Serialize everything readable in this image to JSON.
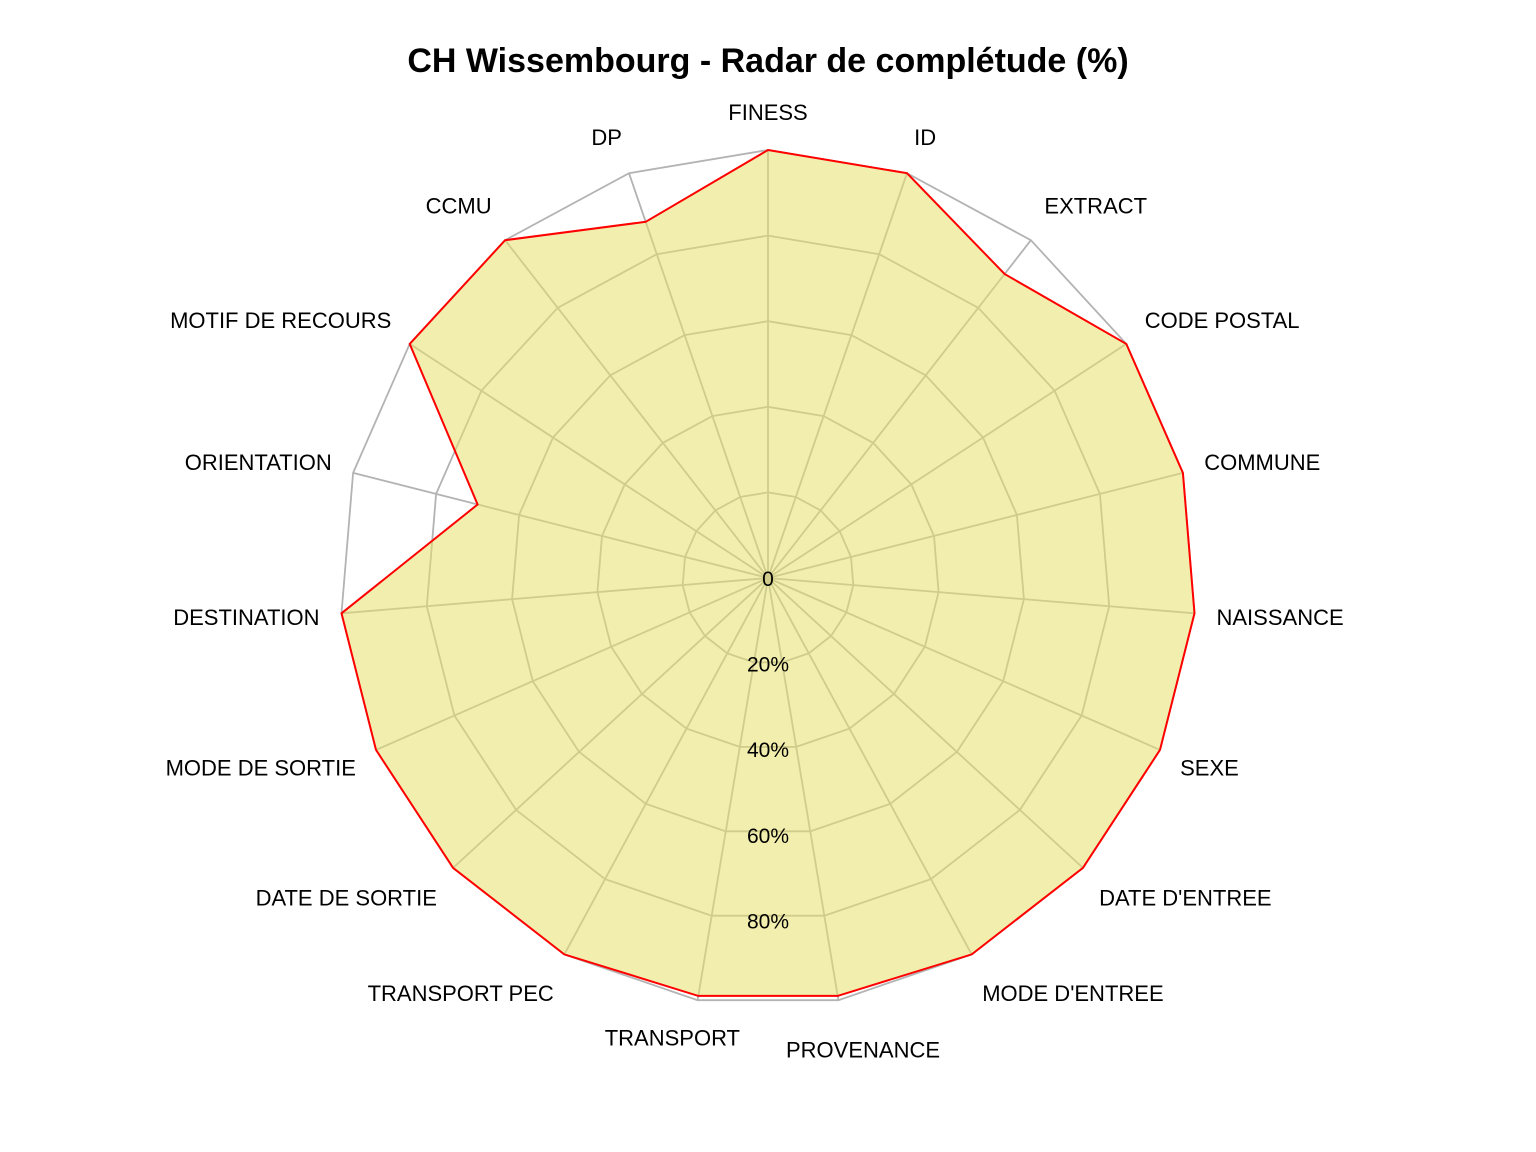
{
  "chart_data": {
    "type": "radar",
    "title": "CH Wissembourg - Radar de complétude (%)",
    "categories": [
      "FINESS",
      "ID",
      "EXTRACT",
      "CODE POSTAL",
      "COMMUNE",
      "NAISSANCE",
      "SEXE",
      "DATE D'ENTREE",
      "MODE D'ENTREE",
      "PROVENANCE",
      "TRANSPORT",
      "TRANSPORT PEC",
      "DATE DE SORTIE",
      "MODE DE SORTIE",
      "DESTINATION",
      "ORIENTATION",
      "MOTIF DE RECOURS",
      "CCMU",
      "DP"
    ],
    "series": [
      {
        "values": [
          100,
          100,
          90,
          100,
          100,
          100,
          100,
          100,
          100,
          99,
          99,
          100,
          100,
          100,
          100,
          70,
          100,
          100,
          88
        ]
      }
    ],
    "ylim": [
      0,
      100
    ],
    "tick_labels": [
      "0",
      "20%",
      "40%",
      "60%",
      "80%"
    ],
    "tick_values": [
      0,
      20,
      40,
      60,
      80
    ],
    "grid": true,
    "legend": "none",
    "colors": {
      "fill": "#e8e06a",
      "line": "#ff0000",
      "grid": "#b3b3b3"
    }
  }
}
